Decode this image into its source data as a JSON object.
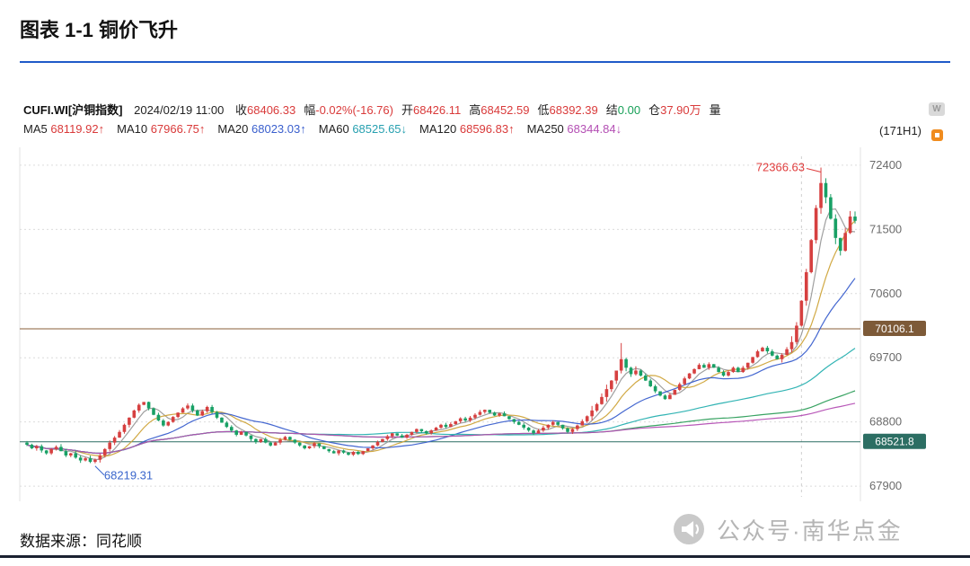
{
  "page": {
    "title": "图表 1-1 铜价飞升",
    "source": "数据来源：同花顺",
    "watermark": "公众号·南华点金",
    "accent_rule_color": "#1f5ac8",
    "bottom_rule_color": "#1b2130"
  },
  "quote_bar": {
    "symbol": "CUFI.WI[沪铜指数]",
    "datetime": "2024/02/19 11:00",
    "fields": [
      {
        "label": "收",
        "value": "68406.33",
        "color": "#d93a3a"
      },
      {
        "label": "幅",
        "value": "-0.02%(-16.76)",
        "color": "#d93a3a"
      },
      {
        "label": "开",
        "value": "68426.11",
        "color": "#d93a3a"
      },
      {
        "label": "高",
        "value": "68452.59",
        "color": "#d93a3a"
      },
      {
        "label": "低",
        "value": "68392.39",
        "color": "#d93a3a"
      },
      {
        "label": "结",
        "value": "0.00",
        "color": "#18a058"
      },
      {
        "label": "仓",
        "value": "37.90万",
        "color": "#d93a3a"
      },
      {
        "label": "量",
        "value": "",
        "color": "#333333"
      }
    ],
    "period_label": "(171H1)"
  },
  "ma_bar": {
    "items": [
      {
        "label": "MA5",
        "value": "68119.92↑",
        "color": "#d93a3a"
      },
      {
        "label": "MA10",
        "value": "67966.75↑",
        "color": "#d93a3a"
      },
      {
        "label": "MA20",
        "value": "68023.03↑",
        "color": "#3a5fcd"
      },
      {
        "label": "MA60",
        "value": "68525.65↓",
        "color": "#27a0b0"
      },
      {
        "label": "MA120",
        "value": "68596.83↑",
        "color": "#d93a3a"
      },
      {
        "label": "MA250",
        "value": "68344.84↓",
        "color": "#b44fb4"
      }
    ]
  },
  "chart_data": {
    "type": "candlestick",
    "title": "CUFI.WI 沪铜指数 铜价飞升",
    "timeframe": "H1",
    "bars": 171,
    "ylim": [
      67750,
      72600
    ],
    "y_ticks": [
      72400,
      71500,
      70600,
      69700,
      68800,
      67900
    ],
    "grid": true,
    "up_color": "#d64040",
    "down_color": "#18a065",
    "closes": [
      68480,
      68430,
      68460,
      68400,
      68360,
      68420,
      68450,
      68390,
      68330,
      68360,
      68300,
      68260,
      68290,
      68240,
      68270,
      68330,
      68420,
      68510,
      68580,
      68660,
      68760,
      68860,
      68960,
      69040,
      69080,
      68990,
      68900,
      68820,
      68750,
      68800,
      68870,
      68930,
      68990,
      69030,
      68960,
      68890,
      68950,
      69010,
      68940,
      68860,
      68790,
      68730,
      68680,
      68620,
      68660,
      68610,
      68560,
      68520,
      68560,
      68510,
      68470,
      68510,
      68550,
      68590,
      68550,
      68510,
      68470,
      68430,
      68460,
      68500,
      68460,
      68420,
      68390,
      68360,
      68400,
      68370,
      68340,
      68380,
      68350,
      68390,
      68430,
      68470,
      68520,
      68560,
      68600,
      68640,
      68610,
      68580,
      68620,
      68660,
      68700,
      68670,
      68640,
      68680,
      68720,
      68760,
      68730,
      68770,
      68810,
      68850,
      68820,
      68860,
      68900,
      68940,
      68970,
      68930,
      68890,
      68920,
      68880,
      68840,
      68800,
      68760,
      68720,
      68680,
      68640,
      68680,
      68720,
      68760,
      68800,
      68760,
      68710,
      68660,
      68700,
      68750,
      68810,
      68880,
      68960,
      69050,
      69150,
      69260,
      69380,
      69520,
      69680,
      69560,
      69470,
      69520,
      69450,
      69380,
      69300,
      69230,
      69170,
      69120,
      69180,
      69250,
      69330,
      69410,
      69480,
      69540,
      69600,
      69560,
      69610,
      69560,
      69500,
      69450,
      69500,
      69560,
      69500,
      69560,
      69630,
      69710,
      69790,
      69840,
      69790,
      69730,
      69680,
      69740,
      69820,
      69920,
      70150,
      70500,
      70900,
      71350,
      71800,
      72150,
      71950,
      71650,
      71380,
      71200,
      71450,
      71680,
      71620
    ],
    "extremes": [
      {
        "index": 14,
        "low": 68219.31
      },
      {
        "index": 122,
        "high": 69906.4
      },
      {
        "index": 163,
        "high": 72366.63
      }
    ],
    "ma_lines": [
      {
        "period": 5,
        "color": "#9a9a9a"
      },
      {
        "period": 10,
        "color": "#cfa43a"
      },
      {
        "period": 20,
        "color": "#3a5fcd"
      },
      {
        "period": 60,
        "color": "#27b0b0"
      },
      {
        "period": 120,
        "color": "#2e9e5b"
      },
      {
        "period": 250,
        "color": "#b44fb4"
      }
    ],
    "reference_lines": [
      {
        "price": 70106.1,
        "label": "70106.1",
        "line_color": "#8a5f3a",
        "tag_bg": "#7d5a38",
        "tag_text": "#ffffff"
      },
      {
        "price": 68521.8,
        "label": "68521.8",
        "line_color": "#2c6e63",
        "tag_bg": "#2c6e63",
        "tag_text": "#ffffff"
      }
    ],
    "annotations": [
      {
        "text": "72366.63",
        "index": 163,
        "price": 72366.63,
        "color": "#e03c3c",
        "placement": "left-of-peak"
      },
      {
        "text": "68219.31",
        "index": 14,
        "price": 68219.31,
        "color": "#3a66cc",
        "placement": "below-low"
      }
    ],
    "vertical_grid_index": 159
  }
}
